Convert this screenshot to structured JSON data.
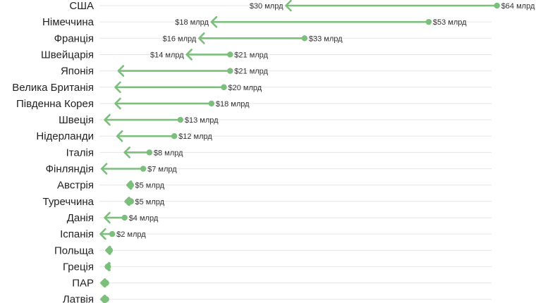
{
  "chart_data": {
    "type": "arrow",
    "xlim": [
      0,
      70
    ],
    "grid": true,
    "legend": "none",
    "colors": {
      "series": "#7cbf7c",
      "grid": "#e6e6e6",
      "text": "#222222"
    },
    "rows": [
      {
        "category": "США",
        "from": 64,
        "to": 30,
        "from_label": "$64 млрд",
        "to_label": "$30 млрд"
      },
      {
        "category": "Німеччина",
        "from": 53,
        "to": 18,
        "from_label": "$53 млрд",
        "to_label": "$18 млрд"
      },
      {
        "category": "Франція",
        "from": 33,
        "to": 16,
        "from_label": "$33 млрд",
        "to_label": "$16 млрд"
      },
      {
        "category": "Швейцарія",
        "from": 21,
        "to": 14,
        "from_label": "$21 млрд",
        "to_label": "$14 млрд"
      },
      {
        "category": "Японія",
        "from": 21,
        "to": 3,
        "from_label": "$21 млрд",
        "to_label": ""
      },
      {
        "category": "Велика Британія",
        "from": 20,
        "to": 2.5,
        "from_label": "$20 млрд",
        "to_label": ""
      },
      {
        "category": "Південна Корея",
        "from": 18,
        "to": 2.5,
        "from_label": "$18 млрд",
        "to_label": ""
      },
      {
        "category": "Швеція",
        "from": 13,
        "to": 0.8,
        "from_label": "$13 млрд",
        "to_label": ""
      },
      {
        "category": "Нідерланди",
        "from": 12,
        "to": 2.8,
        "from_label": "$12 млрд",
        "to_label": ""
      },
      {
        "category": "Італія",
        "from": 8,
        "to": 4,
        "from_label": "$8 млрд",
        "to_label": ""
      },
      {
        "category": "Фінляндія",
        "from": 7,
        "to": 0.3,
        "from_label": "$7 млрд",
        "to_label": ""
      },
      {
        "category": "Австрія",
        "from": 5,
        "to": 4.5,
        "from_label": "$5 млрд",
        "to_label": ""
      },
      {
        "category": "Туреччина",
        "from": 5,
        "to": 4.2,
        "from_label": "$5 млрд",
        "to_label": ""
      },
      {
        "category": "Данія",
        "from": 4,
        "to": 0.8,
        "from_label": "$4 млрд",
        "to_label": ""
      },
      {
        "category": "Іспанія",
        "from": 2,
        "to": 0.1,
        "from_label": "$2 млрд",
        "to_label": ""
      },
      {
        "category": "Польща",
        "from": 1.6,
        "to": 1.1,
        "from_label": "",
        "to_label": ""
      },
      {
        "category": "Греція",
        "from": 1.3,
        "to": 1.0,
        "from_label": "",
        "to_label": ""
      },
      {
        "category": "ПАР",
        "from": 1.0,
        "to": 0.3,
        "from_label": "",
        "to_label": ""
      },
      {
        "category": "Латвія",
        "from": 1.0,
        "to": 0.3,
        "from_label": "",
        "to_label": ""
      }
    ]
  }
}
